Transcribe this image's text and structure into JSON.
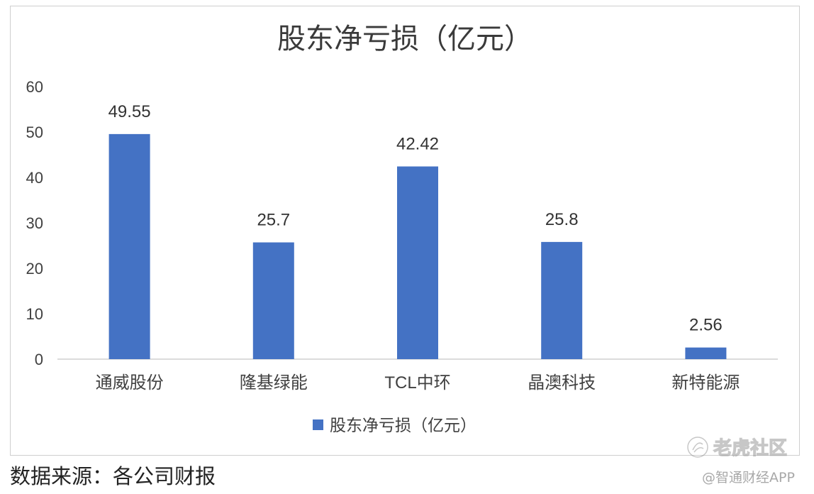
{
  "source_note": "数据来源：各公司财报",
  "watermarks": {
    "logo_text": "老虎社区",
    "app_text": "@智通财经APP"
  },
  "colors": {
    "bar": "#4472C4",
    "axis": "#d0d0d0",
    "text": "#404040"
  },
  "chart_data": {
    "type": "bar",
    "title": "股东净亏损（亿元）",
    "categories": [
      "通威股份",
      "隆基绿能",
      "TCL中环",
      "晶澳科技",
      "新特能源"
    ],
    "series": [
      {
        "name": "股东净亏损（亿元）",
        "values": [
          49.55,
          25.7,
          42.42,
          25.8,
          2.56
        ]
      }
    ],
    "data_labels": [
      "49.55",
      "25.7",
      "42.42",
      "25.8",
      "2.56"
    ],
    "yticks": [
      0,
      10,
      20,
      30,
      40,
      50,
      60
    ],
    "ylim": [
      0,
      60
    ],
    "xlabel": "",
    "ylabel": "",
    "grid": false,
    "legend": "bottom"
  }
}
